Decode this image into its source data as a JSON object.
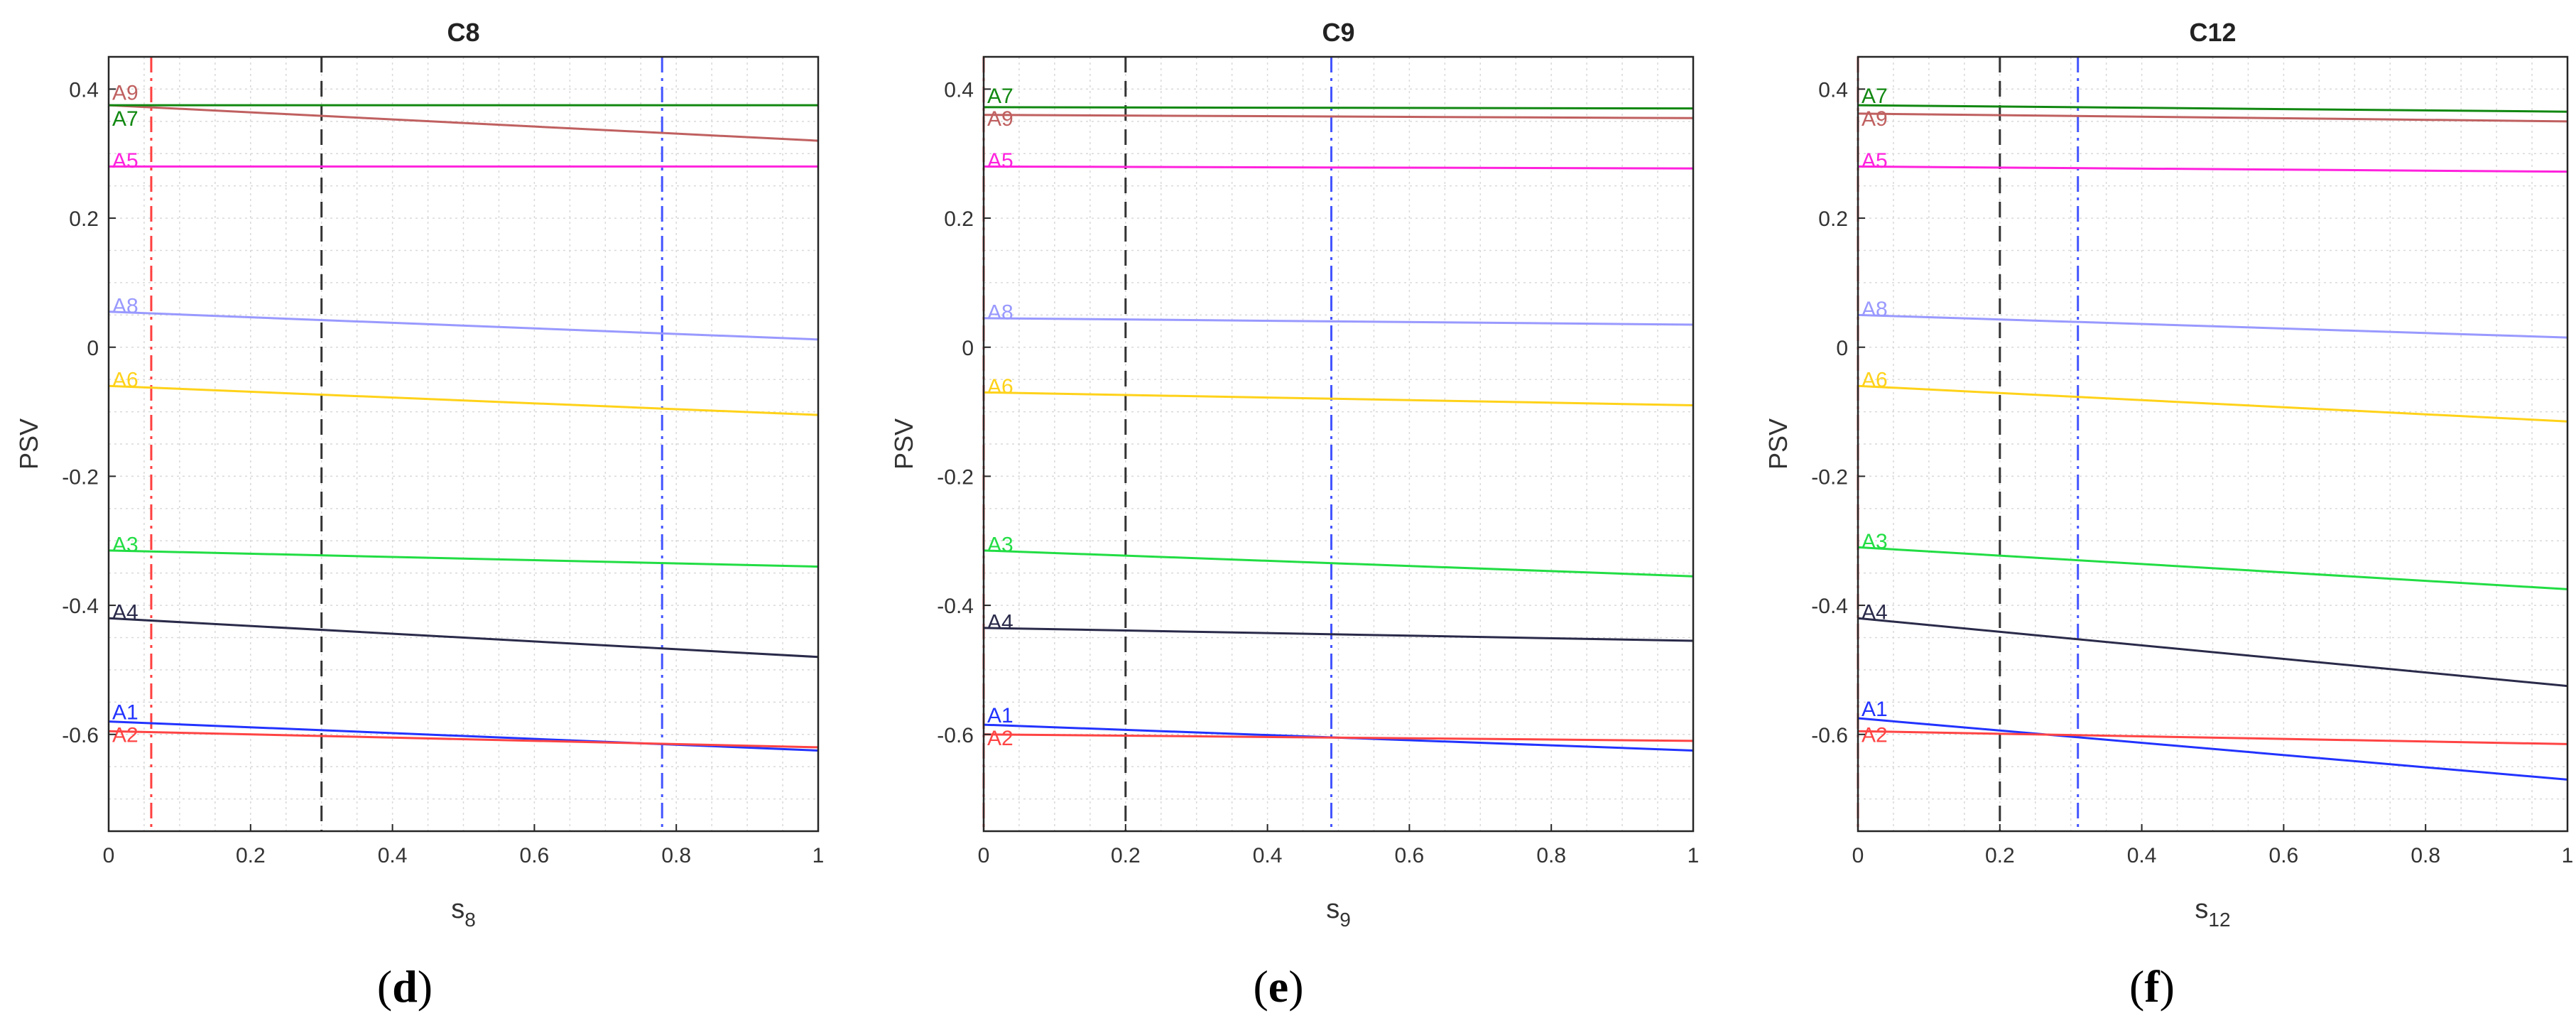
{
  "chart_data": [
    {
      "type": "line",
      "title": "C8",
      "ylabel": "PSV",
      "xlabel_base": "s",
      "xlabel_sub": "8",
      "caption_open": "(",
      "caption_letter": "d",
      "caption_close": ")",
      "xlim": [
        0,
        1
      ],
      "ylim": [
        -0.75,
        0.45
      ],
      "grid": true,
      "minor_grid": true,
      "x": [
        0,
        1
      ],
      "vlines": [
        {
          "x": 0.06,
          "color": "#ff4040",
          "style": "dashdot"
        },
        {
          "x": 0.3,
          "color": "#333333",
          "style": "dashed"
        },
        {
          "x": 0.78,
          "color": "#4455ff",
          "style": "dashdot"
        }
      ],
      "series": [
        {
          "name": "A9",
          "values": [
            0.375,
            0.32
          ],
          "color": "#c06060",
          "label_y": 0.39
        },
        {
          "name": "A7",
          "values": [
            0.375,
            0.375
          ],
          "color": "#118811",
          "label_y": 0.35
        },
        {
          "name": "A5",
          "values": [
            0.28,
            0.28
          ],
          "color": "#ff22dd",
          "label_y": 0.285
        },
        {
          "name": "A8",
          "values": [
            0.055,
            0.012
          ],
          "color": "#9999ff",
          "label_y": 0.06
        },
        {
          "name": "A6",
          "values": [
            -0.06,
            -0.105
          ],
          "color": "#ffd21a",
          "label_y": -0.055
        },
        {
          "name": "A3",
          "values": [
            -0.315,
            -0.34
          ],
          "color": "#22dd44",
          "label_y": -0.31
        },
        {
          "name": "A4",
          "values": [
            -0.42,
            -0.48
          ],
          "color": "#2a2a4a",
          "label_y": -0.415
        },
        {
          "name": "A1",
          "values": [
            -0.58,
            -0.625
          ],
          "color": "#2233ff",
          "label_y": -0.57
        },
        {
          "name": "A2",
          "values": [
            -0.595,
            -0.62
          ],
          "color": "#ff4444",
          "label_y": -0.605
        }
      ]
    },
    {
      "type": "line",
      "title": "C9",
      "ylabel": "PSV",
      "xlabel_base": "s",
      "xlabel_sub": "9",
      "caption_open": "(",
      "caption_letter": "e",
      "caption_close": ")",
      "xlim": [
        0,
        1
      ],
      "ylim": [
        -0.75,
        0.45
      ],
      "grid": true,
      "minor_grid": true,
      "x": [
        0,
        1
      ],
      "vlines": [
        {
          "x": 0.0,
          "color": "#ff4040",
          "style": "dashdot"
        },
        {
          "x": 0.2,
          "color": "#333333",
          "style": "dashed"
        },
        {
          "x": 0.49,
          "color": "#4455ff",
          "style": "dashdot"
        }
      ],
      "series": [
        {
          "name": "A7",
          "values": [
            0.372,
            0.37
          ],
          "color": "#118811",
          "label_y": 0.385
        },
        {
          "name": "A9",
          "values": [
            0.36,
            0.355
          ],
          "color": "#c06060",
          "label_y": 0.35
        },
        {
          "name": "A5",
          "values": [
            0.28,
            0.277
          ],
          "color": "#ff22dd",
          "label_y": 0.285
        },
        {
          "name": "A8",
          "values": [
            0.045,
            0.035
          ],
          "color": "#9999ff",
          "label_y": 0.05
        },
        {
          "name": "A6",
          "values": [
            -0.07,
            -0.09
          ],
          "color": "#ffd21a",
          "label_y": -0.065
        },
        {
          "name": "A3",
          "values": [
            -0.315,
            -0.355
          ],
          "color": "#22dd44",
          "label_y": -0.31
        },
        {
          "name": "A4",
          "values": [
            -0.435,
            -0.455
          ],
          "color": "#2a2a4a",
          "label_y": -0.43
        },
        {
          "name": "A1",
          "values": [
            -0.585,
            -0.625
          ],
          "color": "#2233ff",
          "label_y": -0.575
        },
        {
          "name": "A2",
          "values": [
            -0.6,
            -0.61
          ],
          "color": "#ff4444",
          "label_y": -0.61
        }
      ]
    },
    {
      "type": "line",
      "title": "C12",
      "ylabel": "PSV",
      "xlabel_base": "s",
      "xlabel_sub": "12",
      "caption_open": "(",
      "caption_letter": "f",
      "caption_close": ")",
      "xlim": [
        0,
        1
      ],
      "ylim": [
        -0.75,
        0.45
      ],
      "grid": true,
      "minor_grid": true,
      "x": [
        0,
        1
      ],
      "vlines": [
        {
          "x": 0.0,
          "color": "#ff4040",
          "style": "dashdot"
        },
        {
          "x": 0.2,
          "color": "#333333",
          "style": "dashed"
        },
        {
          "x": 0.31,
          "color": "#4455ff",
          "style": "dashdot"
        }
      ],
      "series": [
        {
          "name": "A7",
          "values": [
            0.375,
            0.365
          ],
          "color": "#118811",
          "label_y": 0.385
        },
        {
          "name": "A9",
          "values": [
            0.362,
            0.35
          ],
          "color": "#c06060",
          "label_y": 0.35
        },
        {
          "name": "A5",
          "values": [
            0.28,
            0.272
          ],
          "color": "#ff22dd",
          "label_y": 0.285
        },
        {
          "name": "A8",
          "values": [
            0.05,
            0.015
          ],
          "color": "#9999ff",
          "label_y": 0.055
        },
        {
          "name": "A6",
          "values": [
            -0.06,
            -0.115
          ],
          "color": "#ffd21a",
          "label_y": -0.055
        },
        {
          "name": "A3",
          "values": [
            -0.31,
            -0.375
          ],
          "color": "#22dd44",
          "label_y": -0.305
        },
        {
          "name": "A4",
          "values": [
            -0.42,
            -0.525
          ],
          "color": "#2a2a4a",
          "label_y": -0.415
        },
        {
          "name": "A1",
          "values": [
            -0.575,
            -0.67
          ],
          "color": "#2233ff",
          "label_y": -0.565
        },
        {
          "name": "A2",
          "values": [
            -0.595,
            -0.615
          ],
          "color": "#ff4444",
          "label_y": -0.605
        }
      ]
    }
  ],
  "axes_style": {
    "yticks": [
      0.4,
      0.2,
      0,
      -0.2,
      -0.4,
      -0.6
    ],
    "ytick_labels": [
      "0.4",
      "0.2",
      "0",
      "-0.2",
      "-0.4",
      "-0.6"
    ],
    "xticks": [
      0,
      0.2,
      0.4,
      0.6,
      0.8,
      1
    ],
    "xtick_labels": [
      "0",
      "0.2",
      "0.4",
      "0.6",
      "0.8",
      "1"
    ],
    "axis_color": "#262626",
    "grid_color": "#d9d9d9"
  }
}
